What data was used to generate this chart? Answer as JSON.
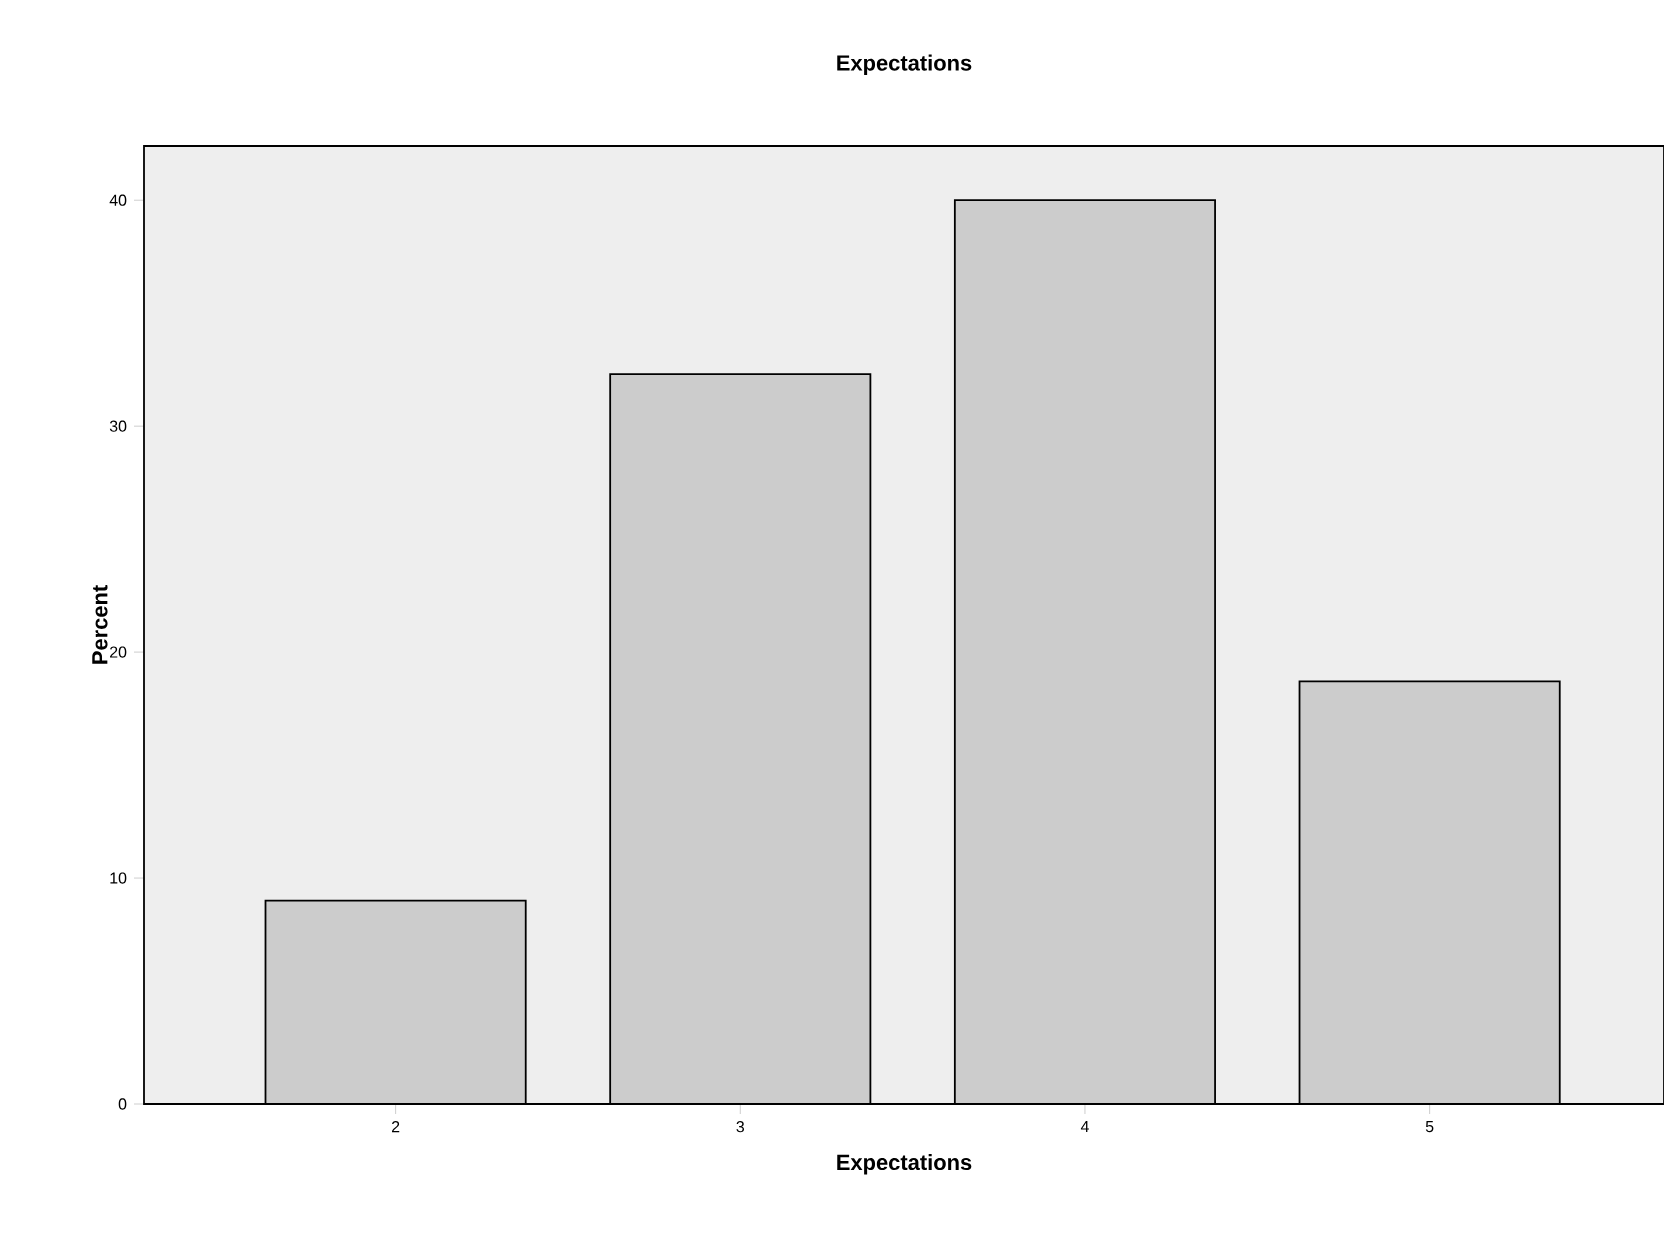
{
  "chart_data": {
    "type": "bar",
    "title": "Expectations",
    "xlabel": "Expectations",
    "ylabel": "Percent",
    "categories": [
      "2",
      "3",
      "4",
      "5"
    ],
    "values": [
      9.0,
      32.3,
      40.0,
      18.7
    ],
    "color": "#cccccc",
    "ylim": [
      0,
      42.4
    ],
    "yticks": [
      0,
      10,
      20,
      30,
      40
    ],
    "grid": false
  }
}
